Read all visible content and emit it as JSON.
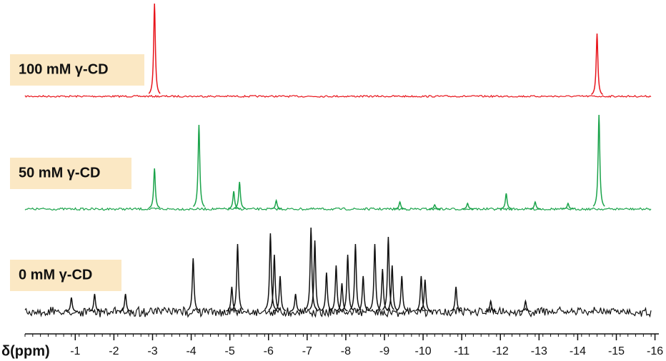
{
  "chart_data": {
    "type": "spectrum",
    "x_label": "δ(ppm)",
    "xlim": [
      0.3,
      -16.1
    ],
    "xticks": [
      -1,
      -2,
      -3,
      -4,
      -5,
      -6,
      -7,
      -8,
      -9,
      -10,
      -11,
      -12,
      -13,
      -14,
      -15,
      -16
    ],
    "series": [
      {
        "name": "100 mM γ-CD",
        "color": "#e8141b",
        "x": [
          -3.05,
          -14.5
        ],
        "values": [
          130,
          88
        ]
      },
      {
        "name": "50 mM γ-CD",
        "color": "#1aa34a",
        "x": [
          -3.05,
          -4.2,
          -5.1,
          -5.25,
          -6.2,
          -9.4,
          -10.3,
          -11.15,
          -12.15,
          -12.9,
          -13.75,
          -14.55
        ],
        "values": [
          57,
          118,
          25,
          38,
          12,
          10,
          6,
          8,
          22,
          10,
          8,
          132
        ]
      },
      {
        "name": "0 mM γ-CD",
        "color": "#111111",
        "x": [
          -0.9,
          -1.5,
          -2.3,
          -4.05,
          -5.05,
          -5.2,
          -6.05,
          -6.15,
          -6.3,
          -6.7,
          -7.1,
          -7.2,
          -7.5,
          -7.75,
          -7.9,
          -8.05,
          -8.25,
          -8.45,
          -8.75,
          -8.95,
          -9.1,
          -9.2,
          -9.45,
          -9.95,
          -10.05,
          -10.85,
          -11.75,
          -12.65
        ],
        "values": [
          20,
          25,
          25,
          75,
          35,
          95,
          110,
          80,
          50,
          25,
          118,
          100,
          55,
          65,
          40,
          80,
          95,
          50,
          95,
          60,
          105,
          65,
          50,
          50,
          45,
          35,
          15,
          15
        ]
      }
    ]
  }
}
